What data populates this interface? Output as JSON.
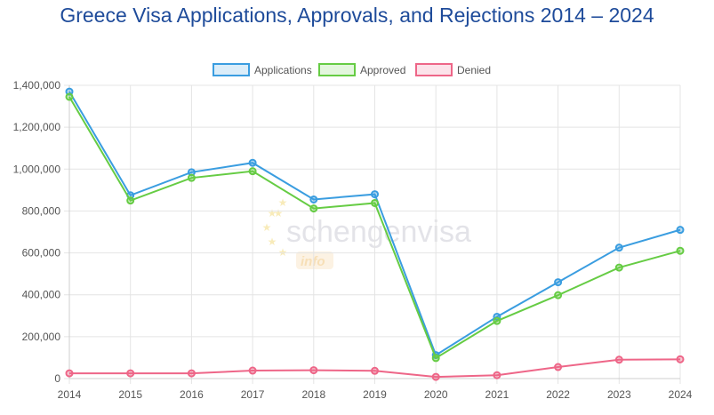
{
  "colors": {
    "applications": "#3a9de0",
    "approved": "#66cc44",
    "denied": "#ee6688",
    "grid": "#e4e4e4",
    "axis_text": "#555555",
    "title": "#1e4b9a"
  },
  "watermark": {
    "brand": "schengenvisa",
    "badge": "info"
  },
  "chart_data": {
    "type": "line",
    "title": "Greece Visa Applications, Approvals, and Rejections 2014 – 2024",
    "xlabel": "",
    "ylabel": "",
    "ylim": [
      0,
      1400000
    ],
    "yticks": [
      0,
      200000,
      400000,
      600000,
      800000,
      1000000,
      1200000,
      1400000
    ],
    "ytick_labels": [
      "0",
      "200,000",
      "400,000",
      "600,000",
      "800,000",
      "1,000,000",
      "1,200,000",
      "1,400,000"
    ],
    "legend_position": "top-center",
    "grid": true,
    "categories": [
      "2014",
      "2015",
      "2016",
      "2017",
      "2018",
      "2019",
      "2020",
      "2021",
      "2022",
      "2023",
      "2024"
    ],
    "series": [
      {
        "name": "Applications",
        "key": "applications",
        "values": [
          1370000,
          875000,
          985000,
          1030000,
          855000,
          880000,
          112000,
          295000,
          460000,
          625000,
          710000
        ]
      },
      {
        "name": "Approved",
        "key": "approved",
        "values": [
          1345000,
          850000,
          958000,
          990000,
          812000,
          838000,
          98000,
          275000,
          398000,
          530000,
          610000
        ]
      },
      {
        "name": "Denied",
        "key": "denied",
        "values": [
          25000,
          25000,
          25000,
          38000,
          40000,
          37000,
          8000,
          16000,
          55000,
          90000,
          92000
        ]
      }
    ]
  }
}
